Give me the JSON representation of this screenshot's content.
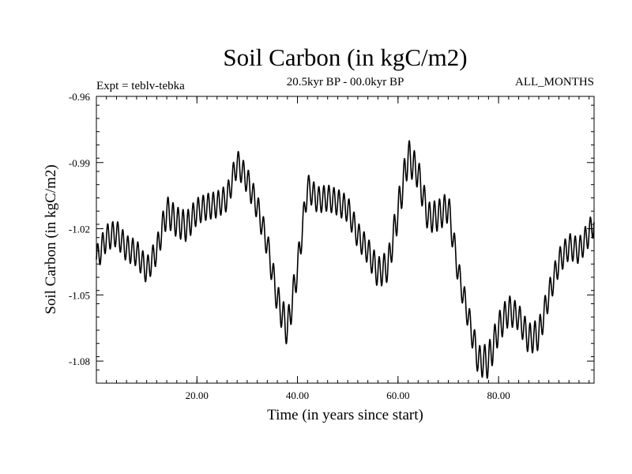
{
  "chart_data": {
    "type": "line",
    "title": "Soil Carbon (in kgC/m2)",
    "subtitle_left": "Expt = teblv-tebka",
    "subtitle_center": "20.5kyr BP - 00.0kyr BP",
    "subtitle_right": "ALL_MONTHS",
    "xlabel": "Time (in years since start)",
    "ylabel": "Soil Carbon (in kgC/m2)",
    "xlim": [
      0,
      99
    ],
    "ylim": [
      -1.09,
      -0.96
    ],
    "x_ticks": [
      {
        "value": 20,
        "label": "20.00"
      },
      {
        "value": 40,
        "label": "40.00"
      },
      {
        "value": 60,
        "label": "60.00"
      },
      {
        "value": 80,
        "label": "80.00"
      }
    ],
    "y_ticks": [
      {
        "value": -0.96,
        "label": "-0.96"
      },
      {
        "value": -0.99,
        "label": "-0.99"
      },
      {
        "value": -1.02,
        "label": "-1.02"
      },
      {
        "value": -1.05,
        "label": "-1.05"
      },
      {
        "value": -1.08,
        "label": "-1.08"
      }
    ],
    "series": [
      {
        "name": "Soil Carbon",
        "cycles_per_year": 1,
        "anchors_x": [
          0,
          2,
          4,
          6,
          8,
          10,
          12,
          14,
          16,
          18,
          20,
          22,
          24,
          26,
          28,
          30,
          32,
          34,
          36,
          38,
          40,
          42,
          44,
          46,
          48,
          50,
          52,
          54,
          56,
          58,
          60,
          62,
          64,
          66,
          68,
          70,
          72,
          74,
          76,
          78,
          80,
          82,
          84,
          86,
          88,
          90,
          92,
          94,
          96,
          98,
          99
        ],
        "anchors_y": [
          -1.034,
          -1.024,
          -1.022,
          -1.029,
          -1.031,
          -1.039,
          -1.03,
          -1.012,
          -1.017,
          -1.019,
          -1.012,
          -1.01,
          -1.009,
          -1.006,
          -0.99,
          -0.998,
          -1.01,
          -1.027,
          -1.052,
          -1.066,
          -1.038,
          -1.001,
          -1.007,
          -1.006,
          -1.008,
          -1.011,
          -1.023,
          -1.03,
          -1.04,
          -1.037,
          -1.012,
          -0.987,
          -0.995,
          -1.015,
          -1.014,
          -1.01,
          -1.04,
          -1.06,
          -1.08,
          -1.08,
          -1.065,
          -1.057,
          -1.06,
          -1.07,
          -1.068,
          -1.05,
          -1.035,
          -1.028,
          -1.03,
          -1.022,
          -1.017
        ],
        "amplitude_y": [
          0.006,
          0.006,
          0.006,
          0.006,
          0.006,
          0.006,
          0.006,
          0.007,
          0.007,
          0.007,
          0.006,
          0.006,
          0.006,
          0.006,
          0.006,
          0.006,
          0.006,
          0.006,
          0.007,
          0.008,
          0.007,
          0.006,
          0.006,
          0.006,
          0.006,
          0.006,
          0.006,
          0.006,
          0.007,
          0.007,
          0.008,
          0.008,
          0.007,
          0.007,
          0.007,
          0.007,
          0.006,
          0.006,
          0.007,
          0.008,
          0.007,
          0.007,
          0.006,
          0.007,
          0.007,
          0.006,
          0.006,
          0.006,
          0.006,
          0.006,
          0.006
        ]
      }
    ]
  }
}
